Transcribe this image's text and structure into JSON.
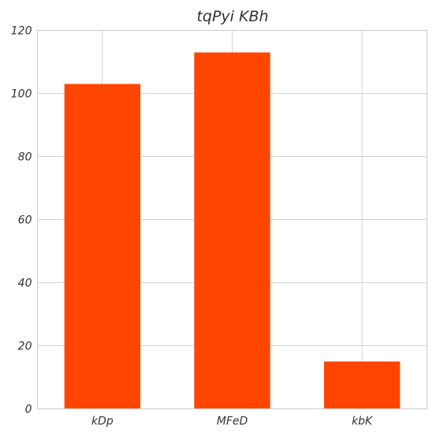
{
  "chart_data": {
    "type": "bar",
    "title": "tqPyi  KBh",
    "xlabel": "",
    "ylabel": "",
    "categories": [
      "kDp",
      "MFeD",
      "kbK"
    ],
    "values": [
      103,
      113,
      15
    ],
    "ylim": [
      0,
      120
    ],
    "yticks": [
      0,
      20,
      40,
      60,
      80,
      100,
      120
    ],
    "grid": true,
    "bar_color": "#ff4500",
    "legend": "none"
  }
}
